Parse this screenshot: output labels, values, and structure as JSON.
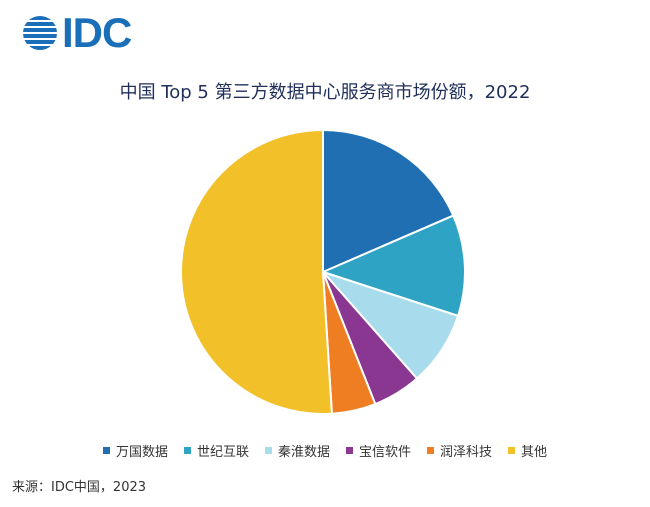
{
  "logo": {
    "text": "IDC"
  },
  "source": "来源：IDC中国，2023",
  "chart_data": {
    "type": "pie",
    "title": "中国 Top 5 第三方数据中心服务商市场份额，2022",
    "legend_position": "bottom",
    "start_angle": "12 o'clock",
    "direction": "clockwise",
    "slices": [
      {
        "label": "万国数据",
        "value": 18.5,
        "color": "#1f6fb2"
      },
      {
        "label": "世纪互联",
        "value": 11.5,
        "color": "#2fa3c4"
      },
      {
        "label": "秦淮数据",
        "value": 8.5,
        "color": "#a8dced"
      },
      {
        "label": "宝信软件",
        "value": 5.5,
        "color": "#8a3791"
      },
      {
        "label": "润泽科技",
        "value": 5.0,
        "color": "#ef7d22"
      },
      {
        "label": "其他",
        "value": 51.0,
        "color": "#f2c028"
      }
    ]
  }
}
